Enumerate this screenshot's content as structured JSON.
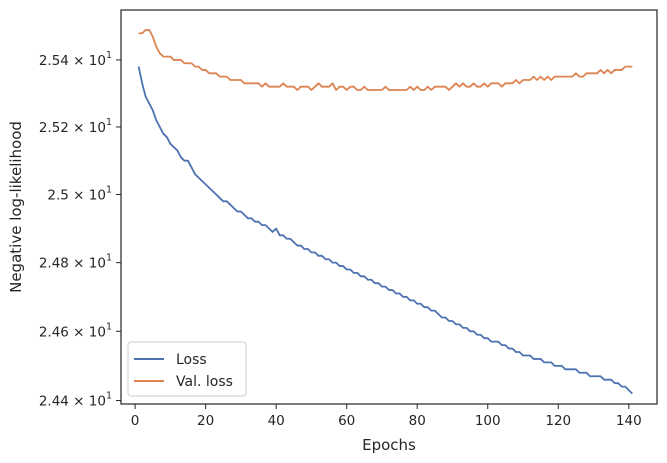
{
  "chart_data": {
    "type": "line",
    "xlabel": "Epochs",
    "ylabel": "Negative log-likelihood",
    "xlim": [
      -4,
      148
    ],
    "ylim": [
      24.39,
      25.55
    ],
    "yscale": "log",
    "xticks": [
      0,
      20,
      40,
      60,
      80,
      100,
      120,
      140
    ],
    "yticks": [
      {
        "value": 24.4,
        "mantissa": "2.44",
        "times": "×",
        "base": "10",
        "exp": "1"
      },
      {
        "value": 24.6,
        "mantissa": "2.46",
        "times": "×",
        "base": "10",
        "exp": "1"
      },
      {
        "value": 24.8,
        "mantissa": "2.48",
        "times": "×",
        "base": "10",
        "exp": "1"
      },
      {
        "value": 25.0,
        "mantissa": "2.5",
        "times": "×",
        "base": "10",
        "exp": "1"
      },
      {
        "value": 25.2,
        "mantissa": "2.52",
        "times": "×",
        "base": "10",
        "exp": "1"
      },
      {
        "value": 25.4,
        "mantissa": "2.54",
        "times": "×",
        "base": "10",
        "exp": "1"
      }
    ],
    "grid": false,
    "legend_position": "lower-left",
    "series": [
      {
        "name": "Loss",
        "color": "#4c72b0",
        "x_start": 1,
        "values": [
          25.38,
          25.33,
          25.29,
          25.27,
          25.25,
          25.22,
          25.2,
          25.18,
          25.17,
          25.15,
          25.14,
          25.13,
          25.11,
          25.1,
          25.1,
          25.08,
          25.06,
          25.05,
          25.04,
          25.03,
          25.02,
          25.01,
          25.0,
          24.99,
          24.98,
          24.98,
          24.97,
          24.96,
          24.95,
          24.95,
          24.94,
          24.93,
          24.93,
          24.92,
          24.92,
          24.91,
          24.91,
          24.9,
          24.89,
          24.9,
          24.88,
          24.88,
          24.87,
          24.87,
          24.86,
          24.85,
          24.85,
          24.84,
          24.84,
          24.83,
          24.83,
          24.82,
          24.82,
          24.81,
          24.81,
          24.8,
          24.8,
          24.79,
          24.79,
          24.78,
          24.78,
          24.77,
          24.77,
          24.76,
          24.76,
          24.75,
          24.75,
          24.74,
          24.74,
          24.73,
          24.73,
          24.72,
          24.72,
          24.71,
          24.71,
          24.7,
          24.7,
          24.69,
          24.69,
          24.68,
          24.68,
          24.67,
          24.67,
          24.66,
          24.66,
          24.65,
          24.64,
          24.64,
          24.63,
          24.63,
          24.62,
          24.62,
          24.61,
          24.61,
          24.6,
          24.6,
          24.59,
          24.59,
          24.58,
          24.58,
          24.57,
          24.57,
          24.57,
          24.56,
          24.56,
          24.55,
          24.55,
          24.54,
          24.54,
          24.53,
          24.53,
          24.53,
          24.52,
          24.52,
          24.52,
          24.51,
          24.51,
          24.51,
          24.5,
          24.5,
          24.5,
          24.49,
          24.49,
          24.49,
          24.49,
          24.48,
          24.48,
          24.48,
          24.47,
          24.47,
          24.47,
          24.47,
          24.46,
          24.46,
          24.46,
          24.45,
          24.45,
          24.44,
          24.44,
          24.43,
          24.42
        ]
      },
      {
        "name": "Val. loss",
        "color": "#dd8452",
        "x_start": 1,
        "values": [
          25.48,
          25.48,
          25.49,
          25.49,
          25.47,
          25.44,
          25.42,
          25.41,
          25.41,
          25.41,
          25.4,
          25.4,
          25.4,
          25.39,
          25.39,
          25.39,
          25.38,
          25.38,
          25.37,
          25.37,
          25.36,
          25.36,
          25.36,
          25.35,
          25.35,
          25.35,
          25.34,
          25.34,
          25.34,
          25.34,
          25.33,
          25.33,
          25.33,
          25.33,
          25.33,
          25.32,
          25.33,
          25.32,
          25.32,
          25.32,
          25.32,
          25.33,
          25.32,
          25.32,
          25.32,
          25.31,
          25.32,
          25.32,
          25.32,
          25.31,
          25.32,
          25.33,
          25.32,
          25.32,
          25.32,
          25.33,
          25.31,
          25.32,
          25.32,
          25.31,
          25.32,
          25.32,
          25.31,
          25.31,
          25.32,
          25.31,
          25.31,
          25.31,
          25.31,
          25.31,
          25.32,
          25.31,
          25.31,
          25.31,
          25.31,
          25.31,
          25.31,
          25.32,
          25.31,
          25.32,
          25.31,
          25.31,
          25.32,
          25.31,
          25.32,
          25.32,
          25.32,
          25.32,
          25.31,
          25.32,
          25.33,
          25.32,
          25.33,
          25.32,
          25.32,
          25.33,
          25.32,
          25.32,
          25.33,
          25.32,
          25.33,
          25.33,
          25.33,
          25.32,
          25.33,
          25.33,
          25.33,
          25.34,
          25.33,
          25.34,
          25.34,
          25.34,
          25.35,
          25.34,
          25.35,
          25.34,
          25.35,
          25.34,
          25.35,
          25.35,
          25.35,
          25.35,
          25.35,
          25.35,
          25.36,
          25.35,
          25.35,
          25.36,
          25.36,
          25.36,
          25.36,
          25.37,
          25.36,
          25.37,
          25.36,
          25.37,
          25.37,
          25.37,
          25.38,
          25.38,
          25.38
        ]
      }
    ]
  }
}
